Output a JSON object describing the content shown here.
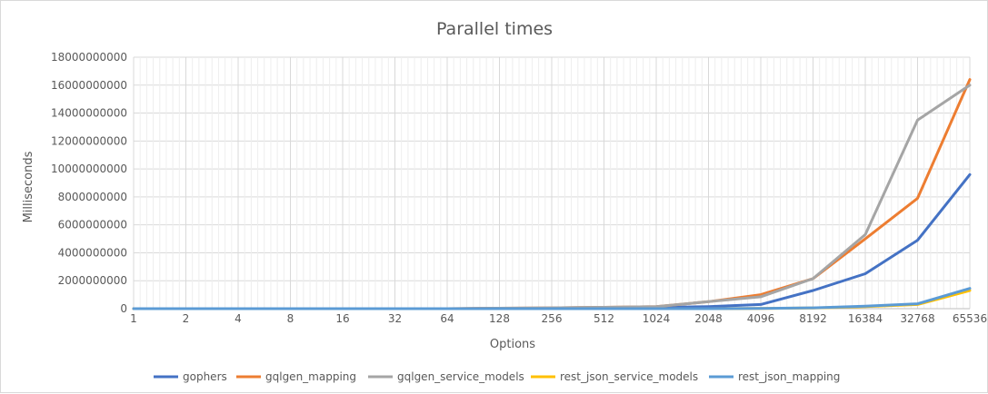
{
  "chart_data": {
    "type": "line",
    "title": "Parallel times",
    "xlabel": "Options",
    "ylabel": "Milliseconds",
    "categories": [
      "1",
      "2",
      "4",
      "8",
      "16",
      "32",
      "64",
      "128",
      "256",
      "512",
      "1024",
      "2048",
      "4096",
      "8192",
      "16384",
      "32768",
      "65536"
    ],
    "ylim": [
      0,
      18000000000
    ],
    "yticks": [
      0,
      2000000000,
      4000000000,
      6000000000,
      8000000000,
      10000000000,
      12000000000,
      14000000000,
      16000000000,
      18000000000
    ],
    "ytick_labels": [
      "0",
      "2000000000",
      "4000000000",
      "6000000000",
      "8000000000",
      "10000000000",
      "12000000000",
      "14000000000",
      "16000000000",
      "18000000000"
    ],
    "grid": true,
    "legend_position": "bottom",
    "series": [
      {
        "name": "gophers",
        "color": "#4472c4",
        "values": [
          0,
          0,
          0,
          0,
          0,
          0,
          0,
          15000000,
          30000000,
          60000000,
          80000000,
          150000000,
          300000000,
          1300000000,
          2500000000,
          4900000000,
          9600000000
        ]
      },
      {
        "name": "gqlgen_mapping",
        "color": "#ed7d31",
        "values": [
          0,
          0,
          0,
          0,
          0,
          0,
          0,
          30000000,
          60000000,
          100000000,
          150000000,
          500000000,
          1000000000,
          2150000000,
          5000000000,
          7900000000,
          16400000000
        ]
      },
      {
        "name": "gqlgen_service_models",
        "color": "#a5a5a5",
        "values": [
          0,
          0,
          0,
          0,
          0,
          0,
          0,
          30000000,
          60000000,
          100000000,
          150000000,
          500000000,
          850000000,
          2150000000,
          5300000000,
          13500000000,
          16000000000
        ]
      },
      {
        "name": "rest_json_service_models",
        "color": "#ffc000",
        "values": [
          0,
          0,
          0,
          0,
          0,
          0,
          0,
          0,
          0,
          0,
          0,
          0,
          20000000,
          50000000,
          150000000,
          300000000,
          1300000000
        ]
      },
      {
        "name": "rest_json_mapping",
        "color": "#5b9bd5",
        "values": [
          0,
          0,
          0,
          0,
          0,
          0,
          0,
          0,
          0,
          0,
          0,
          0,
          20000000,
          60000000,
          180000000,
          350000000,
          1450000000
        ]
      }
    ]
  }
}
